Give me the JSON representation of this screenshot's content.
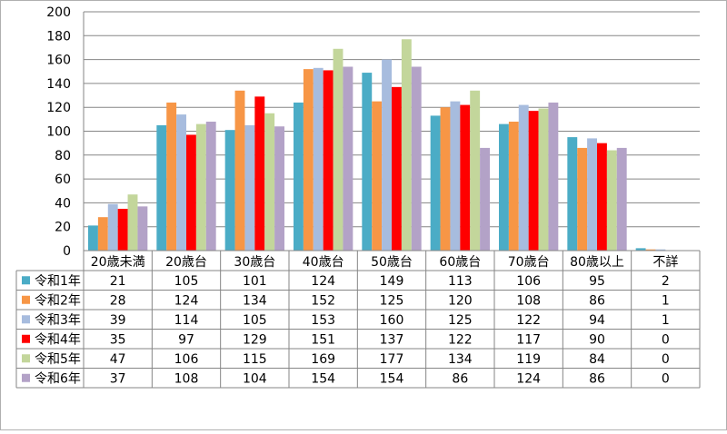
{
  "chart_data": {
    "type": "bar",
    "title": "",
    "xlabel": "",
    "ylabel": "",
    "ylim": [
      0,
      200
    ],
    "yticks": [
      0,
      20,
      40,
      60,
      80,
      100,
      120,
      140,
      160,
      180,
      200
    ],
    "grid": true,
    "legend": "data-table-left",
    "categories": [
      "20歳未満",
      "20歳台",
      "30歳台",
      "40歳台",
      "50歳台",
      "60歳台",
      "70歳台",
      "80歳以上",
      "不詳"
    ],
    "series": [
      {
        "name": "令和1年",
        "color": "#4BACC6",
        "values": [
          21,
          105,
          101,
          124,
          149,
          113,
          106,
          95,
          2
        ]
      },
      {
        "name": "令和2年",
        "color": "#F79646",
        "values": [
          28,
          124,
          134,
          152,
          125,
          120,
          108,
          86,
          1
        ]
      },
      {
        "name": "令和3年",
        "color": "#A7BCDE",
        "values": [
          39,
          114,
          105,
          153,
          160,
          125,
          122,
          94,
          1
        ]
      },
      {
        "name": "令和4年",
        "color": "#FF0000",
        "values": [
          35,
          97,
          129,
          151,
          137,
          122,
          117,
          90,
          0
        ]
      },
      {
        "name": "令和5年",
        "color": "#C3D69B",
        "values": [
          47,
          106,
          115,
          169,
          177,
          134,
          119,
          84,
          0
        ]
      },
      {
        "name": "令和6年",
        "color": "#B3A2C7",
        "values": [
          37,
          108,
          104,
          154,
          154,
          86,
          124,
          86,
          0
        ]
      }
    ]
  }
}
